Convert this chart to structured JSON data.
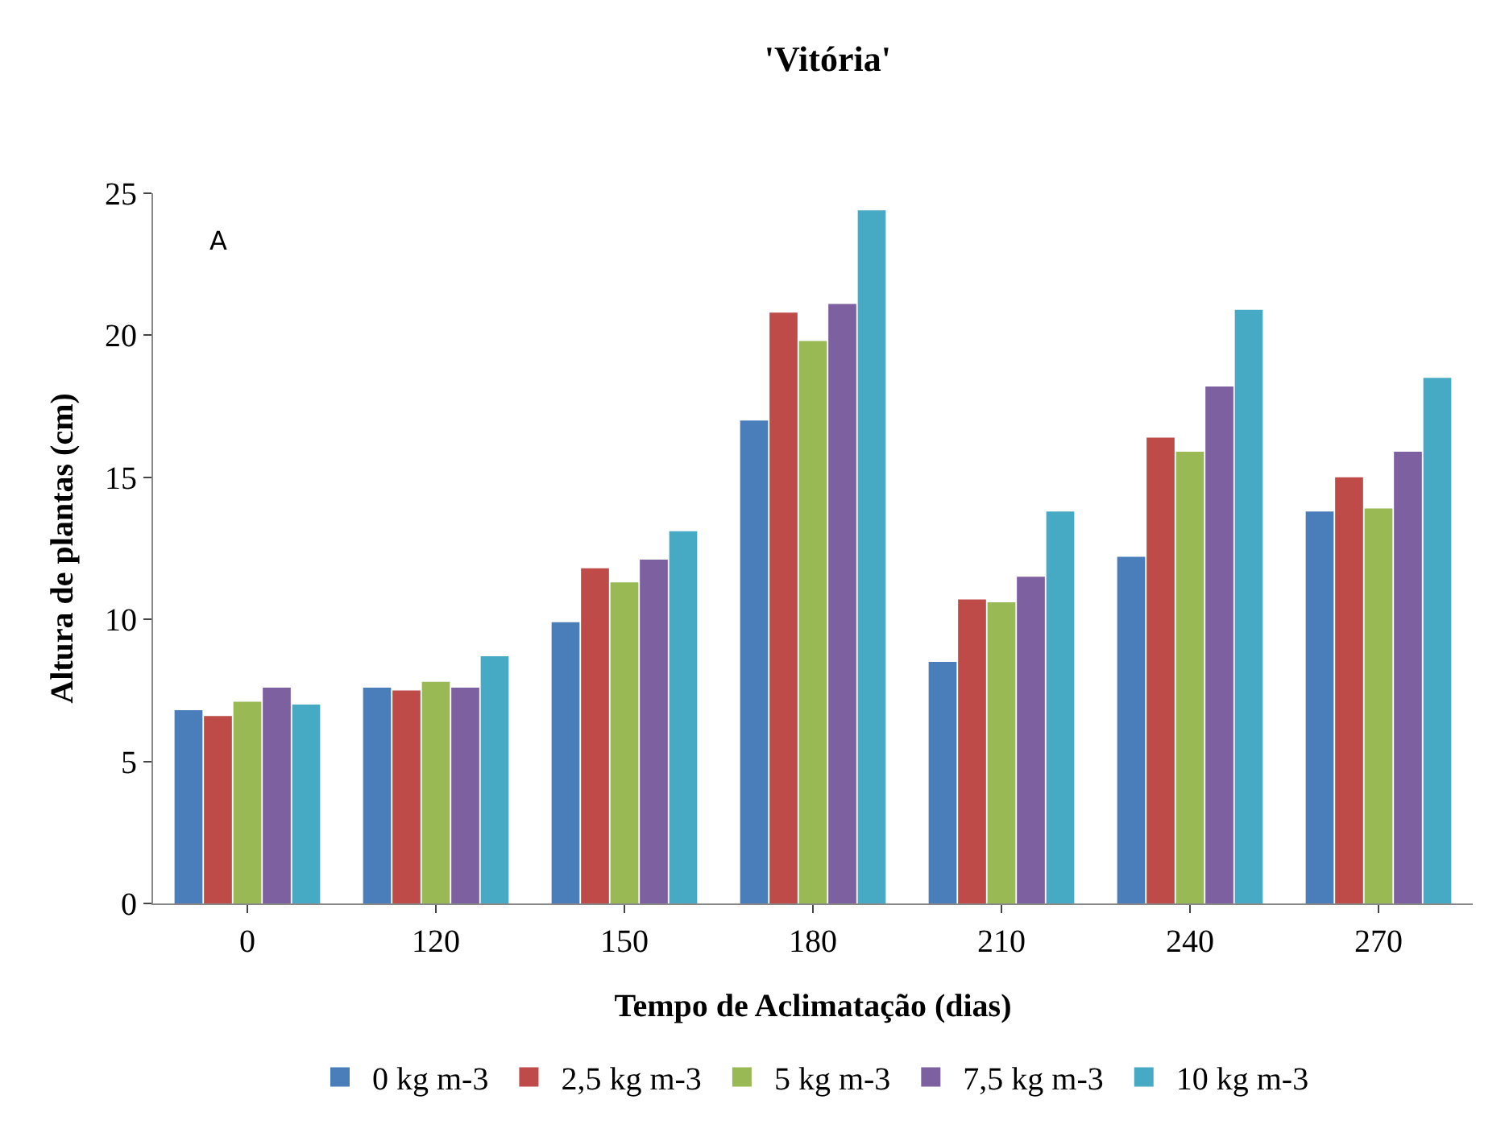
{
  "chart_data": {
    "type": "bar",
    "title": "'Vitória'",
    "xlabel": "Tempo de Aclimatação (dias)",
    "ylabel": "Altura de plantas (cm)",
    "annotations": [
      "A"
    ],
    "categories": [
      "0",
      "120",
      "150",
      "180",
      "210",
      "240",
      "270"
    ],
    "series": [
      {
        "name": "0 kg m-3",
        "color": "#4a7ebb",
        "values": [
          6.8,
          7.6,
          9.9,
          17.0,
          8.5,
          12.2,
          13.8
        ]
      },
      {
        "name": "2,5 kg m-3",
        "color": "#be4b48",
        "values": [
          6.6,
          7.5,
          11.8,
          20.8,
          10.7,
          16.4,
          15.0
        ]
      },
      {
        "name": "5 kg m-3",
        "color": "#98b954",
        "values": [
          7.1,
          7.8,
          11.3,
          19.8,
          10.6,
          15.9,
          13.9
        ]
      },
      {
        "name": "7,5 kg m-3",
        "color": "#7d60a0",
        "values": [
          7.6,
          7.6,
          12.1,
          21.1,
          11.5,
          18.2,
          15.9
        ]
      },
      {
        "name": "10 kg m-3",
        "color": "#46aac5",
        "values": [
          7.0,
          8.7,
          13.1,
          24.4,
          13.8,
          20.9,
          18.5
        ]
      }
    ],
    "ylim": [
      0,
      25
    ],
    "yticks": [
      0,
      5,
      10,
      15,
      20,
      25
    ],
    "legend": "bottom",
    "grid": false
  }
}
